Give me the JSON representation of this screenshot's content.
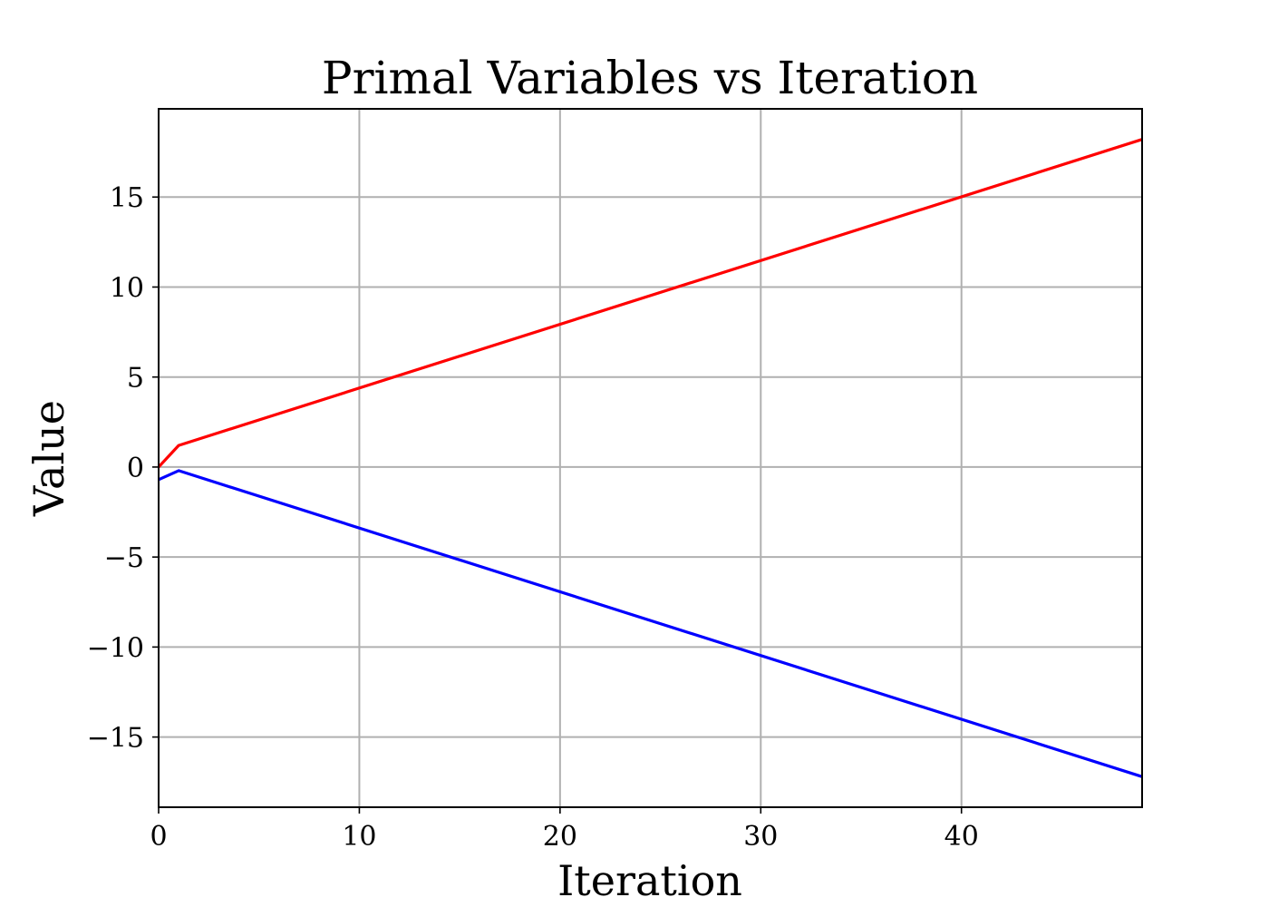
{
  "chart_data": {
    "type": "line",
    "title": "Primal Variables vs Iteration",
    "xlabel": "Iteration",
    "ylabel": "Value",
    "xlim": [
      0,
      49
    ],
    "ylim": [
      -18.9,
      19.9
    ],
    "xticks": [
      0,
      10,
      20,
      30,
      40
    ],
    "xtick_labels": [
      "0",
      "10",
      "20",
      "30",
      "40"
    ],
    "yticks": [
      -15,
      -10,
      -5,
      0,
      5,
      10,
      15
    ],
    "ytick_labels": [
      "−15",
      "−10",
      "−5",
      "0",
      "5",
      "10",
      "15"
    ],
    "grid": true,
    "series": [
      {
        "color": "#ff0000",
        "x": [
          0,
          1,
          49
        ],
        "y": [
          0.0,
          1.2,
          18.2
        ]
      },
      {
        "color": "#0000ff",
        "x": [
          0,
          1,
          49
        ],
        "y": [
          -0.7,
          -0.2,
          -17.2
        ]
      }
    ]
  }
}
